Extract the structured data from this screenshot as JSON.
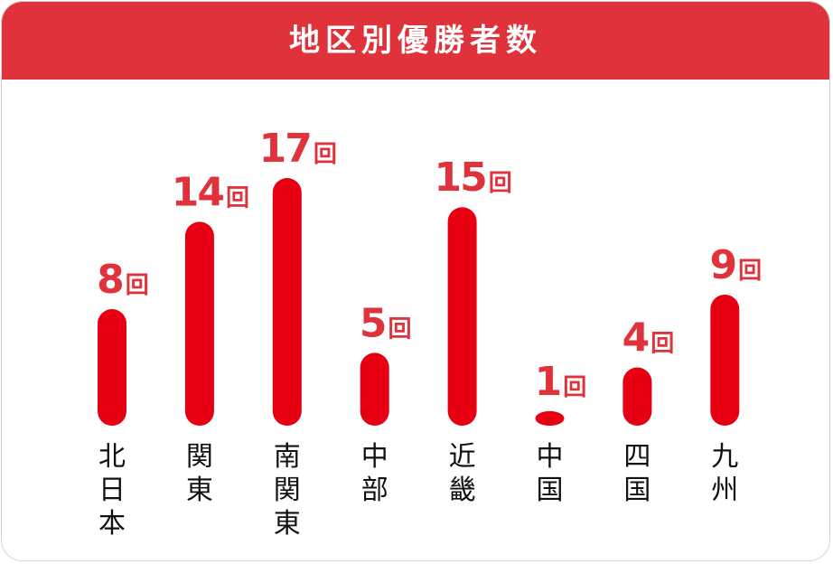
{
  "header": {
    "title": "地区別優勝者数"
  },
  "colors": {
    "header_bg": "#e0323b",
    "bar": "#e60012",
    "value_label": "#e0323b",
    "category_label": "#111111"
  },
  "chart_data": {
    "type": "bar",
    "title": "地区別優勝者数",
    "categories": [
      "北日本",
      "関東",
      "南関東",
      "中部",
      "近畿",
      "中国",
      "四国",
      "九州"
    ],
    "values": [
      8,
      14,
      17,
      5,
      15,
      1,
      4,
      9
    ],
    "value_labels": [
      "8",
      "14",
      "17",
      "5",
      "15",
      "1",
      "4",
      "9"
    ],
    "unit": "回",
    "xlabel": "",
    "ylabel": "",
    "ylim": [
      0,
      17
    ],
    "grid": false,
    "legend": "none"
  }
}
